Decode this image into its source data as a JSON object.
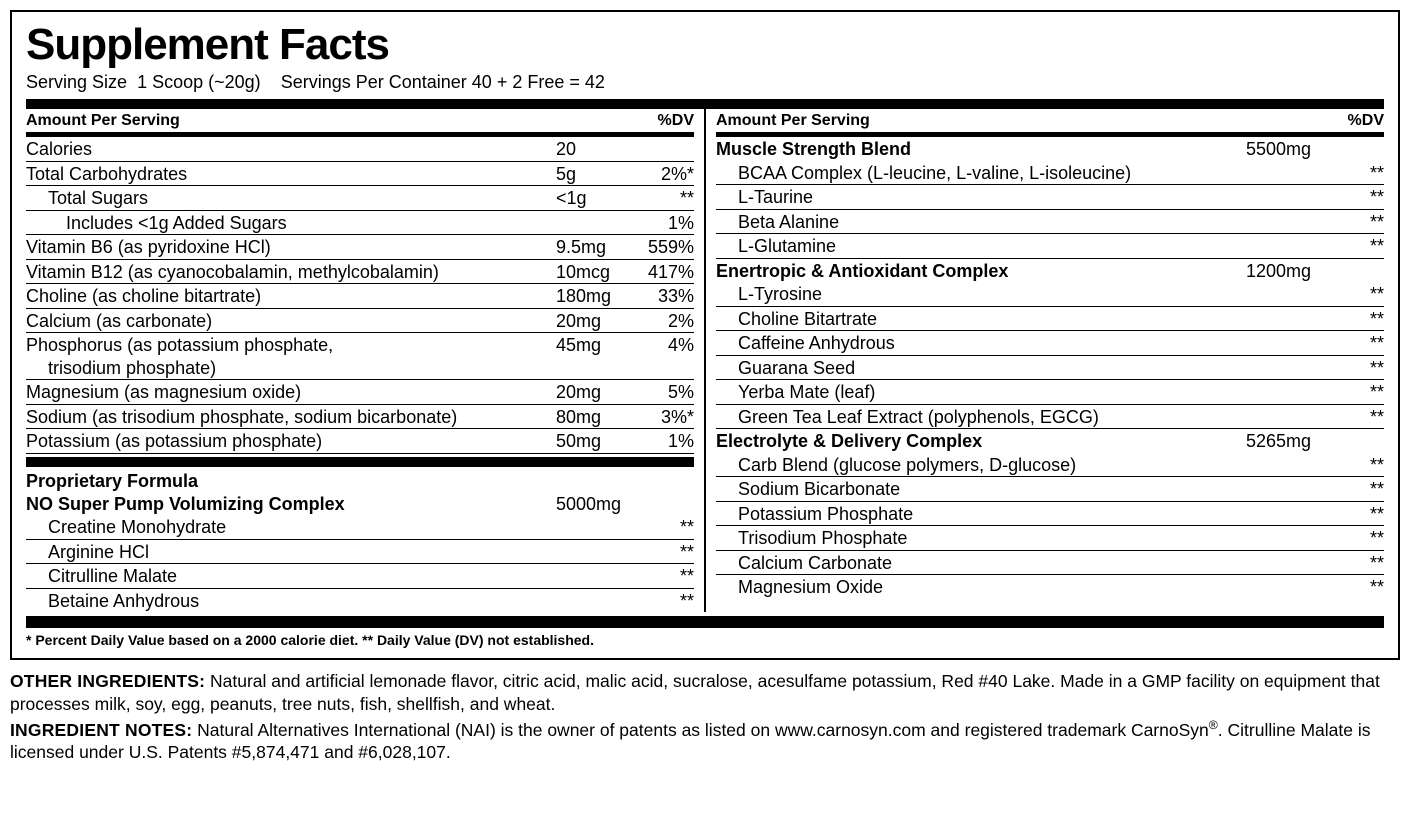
{
  "title": "Supplement Facts",
  "serving_size_label": "Serving Size",
  "serving_size_value": "1 Scoop (~20g)",
  "servings_label": "Servings Per Container",
  "servings_value": "40 + 2 Free = 42",
  "header_aps": "Amount Per Serving",
  "header_dv": "%DV",
  "left_nutrients": [
    {
      "name": "Calories",
      "amount": "20",
      "dv": ""
    },
    {
      "name": "Total Carbohydrates",
      "amount": "5g",
      "dv": "2%*"
    },
    {
      "name": "Total Sugars",
      "amount": "<1g",
      "dv": "**",
      "indent": 1
    },
    {
      "name": "Includes <1g Added Sugars",
      "amount": "",
      "dv": "1%",
      "indent": 2
    },
    {
      "name": "Vitamin B6 (as pyridoxine HCl)",
      "amount": "9.5mg",
      "dv": "559%"
    },
    {
      "name": "Vitamin B12 (as cyanocobalamin, methylcobalamin)",
      "amount": "10mcg",
      "dv": "417%"
    },
    {
      "name": "Choline (as choline bitartrate)",
      "amount": "180mg",
      "dv": "33%"
    },
    {
      "name": "Calcium (as carbonate)",
      "amount": "20mg",
      "dv": "2%"
    },
    {
      "name": "Phosphorus (as potassium phosphate, trisodium phosphate)",
      "amount": "45mg",
      "dv": "4%",
      "wrap": true
    },
    {
      "name": "Magnesium (as magnesium oxide)",
      "amount": "20mg",
      "dv": "5%"
    },
    {
      "name": "Sodium (as trisodium phosphate, sodium bicarbonate)",
      "amount": "80mg",
      "dv": "3%*"
    },
    {
      "name": "Potassium (as potassium phosphate)",
      "amount": "50mg",
      "dv": "1%"
    }
  ],
  "proprietary_label": "Proprietary Formula",
  "left_blends": [
    {
      "title": "NO Super Pump Volumizing Complex",
      "amount": "5000mg",
      "items": [
        {
          "name": "Creatine Monohydrate",
          "dv": "**"
        },
        {
          "name": "Arginine HCl",
          "dv": "**"
        },
        {
          "name": "Citrulline Malate",
          "dv": "**"
        },
        {
          "name": "Betaine Anhydrous",
          "dv": "**"
        }
      ]
    }
  ],
  "right_blends": [
    {
      "title": "Muscle Strength Blend",
      "amount": "5500mg",
      "items": [
        {
          "name": "BCAA Complex (L-leucine, L-valine, L-isoleucine)",
          "dv": "**"
        },
        {
          "name": "L-Taurine",
          "dv": "**"
        },
        {
          "name": "Beta Alanine",
          "dv": "**"
        },
        {
          "name": "L-Glutamine",
          "dv": "**"
        }
      ]
    },
    {
      "title": "Enertropic & Antioxidant Complex",
      "amount": "1200mg",
      "items": [
        {
          "name": "L-Tyrosine",
          "dv": "**"
        },
        {
          "name": "Choline Bitartrate",
          "dv": "**"
        },
        {
          "name": "Caffeine Anhydrous",
          "dv": "**"
        },
        {
          "name": "Guarana Seed",
          "dv": "**"
        },
        {
          "name": "Yerba Mate (leaf)",
          "dv": "**"
        },
        {
          "name": "Green Tea Leaf Extract (polyphenols, EGCG)",
          "dv": "**"
        }
      ]
    },
    {
      "title": "Electrolyte & Delivery Complex",
      "amount": "5265mg",
      "items": [
        {
          "name": "Carb Blend (glucose polymers, D-glucose)",
          "dv": "**"
        },
        {
          "name": "Sodium Bicarbonate",
          "dv": "**"
        },
        {
          "name": "Potassium Phosphate",
          "dv": "**"
        },
        {
          "name": "Trisodium Phosphate",
          "dv": "**"
        },
        {
          "name": "Calcium Carbonate",
          "dv": "**"
        },
        {
          "name": "Magnesium Oxide",
          "dv": "**"
        }
      ]
    }
  ],
  "footnote": "* Percent Daily Value based on a 2000 calorie diet. ** Daily Value (DV) not established.",
  "other_ingredients_label": "OTHER INGREDIENTS:",
  "other_ingredients_text": " Natural and artificial lemonade flavor, citric acid, malic acid, sucralose, acesulfame potassium, Red #40 Lake. Made in a GMP facility on equipment that processes milk, soy, egg, peanuts, tree nuts, fish, shellfish, and wheat.",
  "ingredient_notes_label": "INGREDIENT NOTES:",
  "ingredient_notes_text_a": " Natural Alternatives International (NAI) is the owner of patents as listed on www.carnosyn.com and registered trademark CarnoSyn",
  "ingredient_notes_text_b": ". Citrulline Malate is licensed under U.S. Patents #5,874,471 and #6,028,107."
}
